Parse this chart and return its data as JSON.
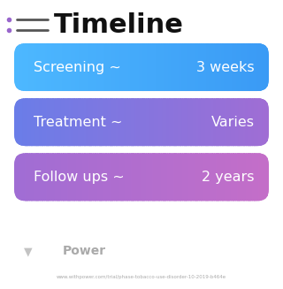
{
  "title": "Timeline",
  "title_fontsize": 22,
  "title_fontweight": "bold",
  "background_color": "#ffffff",
  "rows": [
    {
      "label": "Screening ~",
      "value": "3 weeks",
      "color_left": "#4db8ff",
      "color_right": "#3a9af5"
    },
    {
      "label": "Treatment ~",
      "value": "Varies",
      "color_left": "#6a7de8",
      "color_right": "#a06dd4"
    },
    {
      "label": "Follow ups ~",
      "value": "2 years",
      "color_left": "#a06dd4",
      "color_right": "#c46ec8"
    }
  ],
  "icon_color": "#9966cc",
  "watermark_text": "Power",
  "watermark_color": "#aaaaaa",
  "url_text": "www.withpower.com/trial/phase-tobacco-use-disorder-10-2019-b464e",
  "url_color": "#aaaaaa",
  "text_color": "#ffffff",
  "label_fontsize": 11.5,
  "value_fontsize": 11.5
}
